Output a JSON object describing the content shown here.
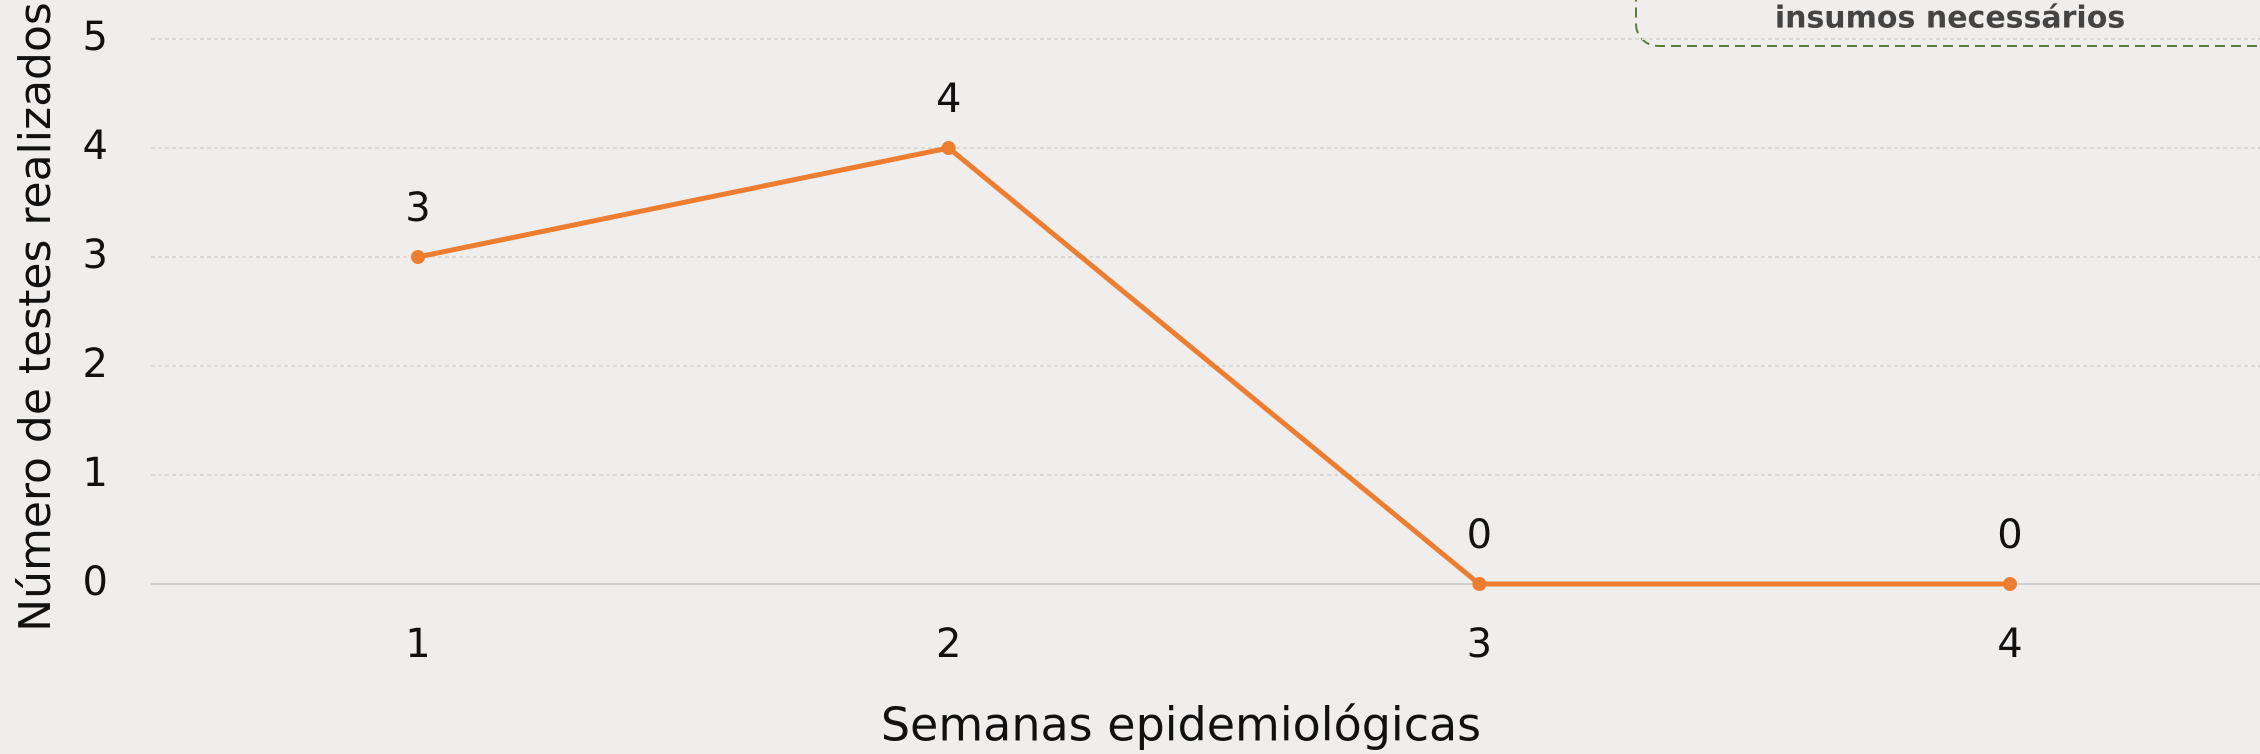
{
  "chart_data": {
    "type": "line",
    "categories": [
      "1",
      "2",
      "3",
      "4"
    ],
    "values": [
      3,
      4,
      0,
      0
    ],
    "color": "#ed7d31",
    "x_label": "Semanas epidemiológicas",
    "y_label": "Número de testes realizados",
    "ylim": [
      0,
      5
    ],
    "yticks": [
      0,
      1,
      2,
      3,
      4,
      5
    ],
    "grid": true,
    "annotation": "insumos necessários"
  }
}
